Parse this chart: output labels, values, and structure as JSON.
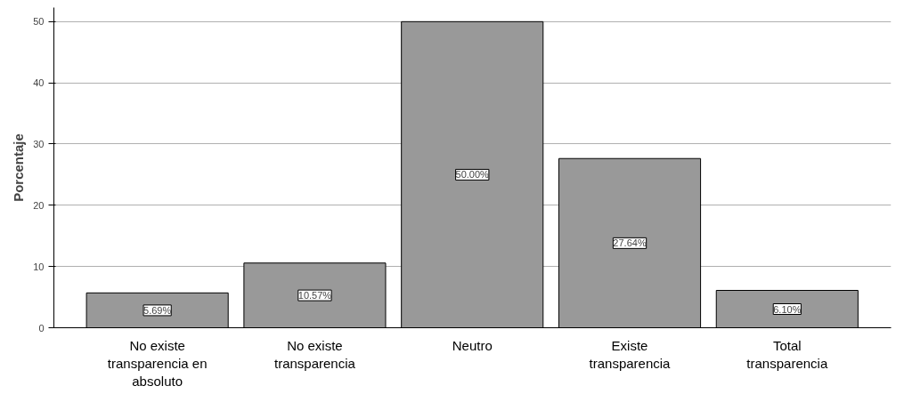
{
  "chart_data": {
    "type": "bar",
    "ylabel": "Porcentaje",
    "categories": [
      "No existe\ntransparencia en\nabsoluto",
      "No existe\ntransparencia",
      "Neutro",
      "Existe\ntransparencia",
      "Total\ntransparencia"
    ],
    "values": [
      5.69,
      10.57,
      50.0,
      27.64,
      6.1
    ],
    "value_labels": [
      "5.69%",
      "10.57%",
      "50.00%",
      "27.64%",
      "6.10%"
    ],
    "color": "#999999",
    "ylim": [
      0,
      52.3
    ],
    "yticks": [
      0,
      10,
      20,
      30,
      40,
      50
    ],
    "grid": "y"
  }
}
